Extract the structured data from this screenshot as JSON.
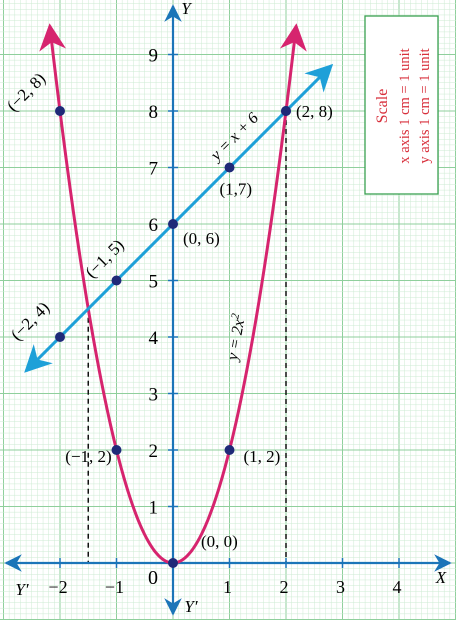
{
  "chart_data": {
    "type": "line",
    "xlim": [
      -3,
      5
    ],
    "ylim": [
      -1,
      10
    ],
    "grid": true,
    "x_ticks": [
      {
        "value": -2,
        "label": "−2"
      },
      {
        "value": -1,
        "label": "−1"
      },
      {
        "value": 1,
        "label": "1"
      },
      {
        "value": 2,
        "label": "2"
      },
      {
        "value": 3,
        "label": "3"
      },
      {
        "value": 4,
        "label": "4"
      }
    ],
    "y_ticks": [
      {
        "value": 1,
        "label": "1"
      },
      {
        "value": 2,
        "label": "2"
      },
      {
        "value": 3,
        "label": "3"
      },
      {
        "value": 4,
        "label": "4"
      },
      {
        "value": 5,
        "label": "5"
      },
      {
        "value": 6,
        "label": "6"
      },
      {
        "value": 7,
        "label": "7"
      },
      {
        "value": 8,
        "label": "8"
      },
      {
        "value": 9,
        "label": "9"
      }
    ],
    "origin_label": "0",
    "axis_labels": {
      "x_pos": "X",
      "x_neg": "Y′",
      "y_pos": "Y",
      "y_neg": "Y′"
    },
    "series": [
      {
        "name": "y = 2x²",
        "curve": "parabola",
        "color": "#d6246e",
        "x_range": [
          -2.18,
          2.18
        ],
        "points": [
          {
            "x": -2,
            "y": 8,
            "label": "(−2, 8)"
          },
          {
            "x": -1,
            "y": 2,
            "label": "(−1, 2)"
          },
          {
            "x": 0,
            "y": 0,
            "label": "(0, 0)"
          },
          {
            "x": 1,
            "y": 2,
            "label": "(1, 2)"
          },
          {
            "x": 2,
            "y": 8,
            "label": "(2, 8)"
          }
        ]
      },
      {
        "name": "y = x + 6",
        "curve": "line",
        "color": "#1ea0d8",
        "x_range": [
          -2.6,
          2.8
        ],
        "points": [
          {
            "x": -2,
            "y": 4,
            "label": "(−2, 4)"
          },
          {
            "x": -1,
            "y": 5,
            "label": "(−1, 5)"
          },
          {
            "x": 0,
            "y": 6,
            "label": "(0, 6)"
          },
          {
            "x": 1,
            "y": 7,
            "label": "(1,7)"
          },
          {
            "x": 2,
            "y": 8,
            "label": ""
          }
        ]
      }
    ],
    "intersection_drop_lines": [
      {
        "x": -1.5,
        "y": 4.5
      },
      {
        "x": 2,
        "y": 8
      }
    ],
    "scale_box": {
      "title": "Scale",
      "lines": [
        "x axis 1 cm = 1 unit",
        "y axis 1 cm = 1 unit"
      ],
      "color": "#d8303c"
    }
  }
}
